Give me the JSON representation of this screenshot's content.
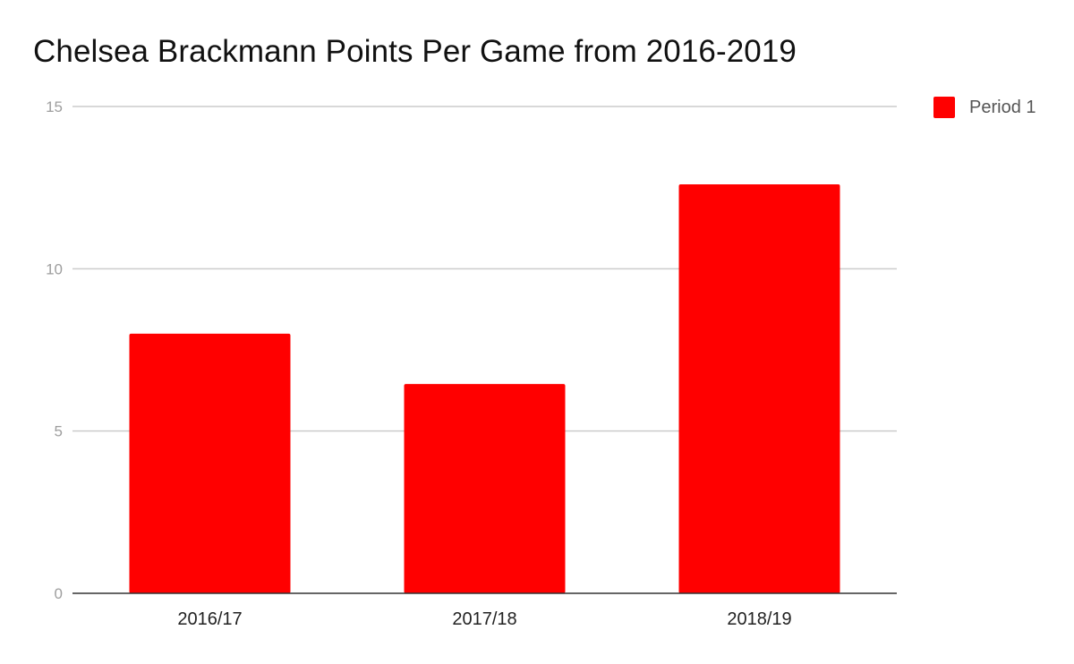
{
  "chart_data": {
    "type": "bar",
    "title": "Chelsea Brackmann Points Per Game from 2016-2019",
    "xlabel": "",
    "ylabel": "",
    "categories": [
      "2016/17",
      "2017/18",
      "2018/19"
    ],
    "series": [
      {
        "name": "Period 1",
        "color": "#ff0000",
        "values": [
          8.0,
          6.45,
          12.6
        ]
      }
    ],
    "ylim": [
      0,
      15
    ],
    "yticks": [
      0,
      5,
      10,
      15
    ],
    "grid": true,
    "legend_position": "top-right"
  }
}
